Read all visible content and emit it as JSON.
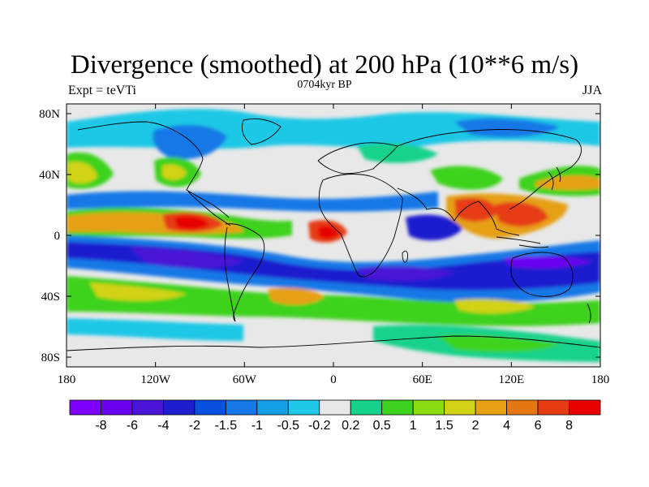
{
  "title": "Divergence (smoothed) at 200 hPa (10**6 m/s)",
  "left_subtitle": "Expt = teVTi",
  "center_subtitle": "0704kyr BP",
  "right_subtitle": "JJA",
  "lon_ticks": [
    "180",
    "120W",
    "60W",
    "0",
    "60E",
    "120E",
    "180"
  ],
  "lat_ticks": [
    "80N",
    "40N",
    "0",
    "40S",
    "80S"
  ],
  "colorbar": {
    "colors": [
      "#7d00ff",
      "#6a00f0",
      "#4a14d6",
      "#1e1ecf",
      "#0a50e0",
      "#1478e6",
      "#14a0e6",
      "#1ec8e6",
      "#e8e8e8",
      "#14d28c",
      "#3cd21e",
      "#8cdc14",
      "#d2d214",
      "#e6a014",
      "#e67814",
      "#e63c14",
      "#e60000"
    ],
    "labels": [
      "-8",
      "-6",
      "-4",
      "-2",
      "-1.5",
      "-1",
      "-0.5",
      "-0.2",
      "0.2",
      "0.5",
      "1",
      "1.5",
      "2",
      "4",
      "6",
      "8"
    ]
  }
}
